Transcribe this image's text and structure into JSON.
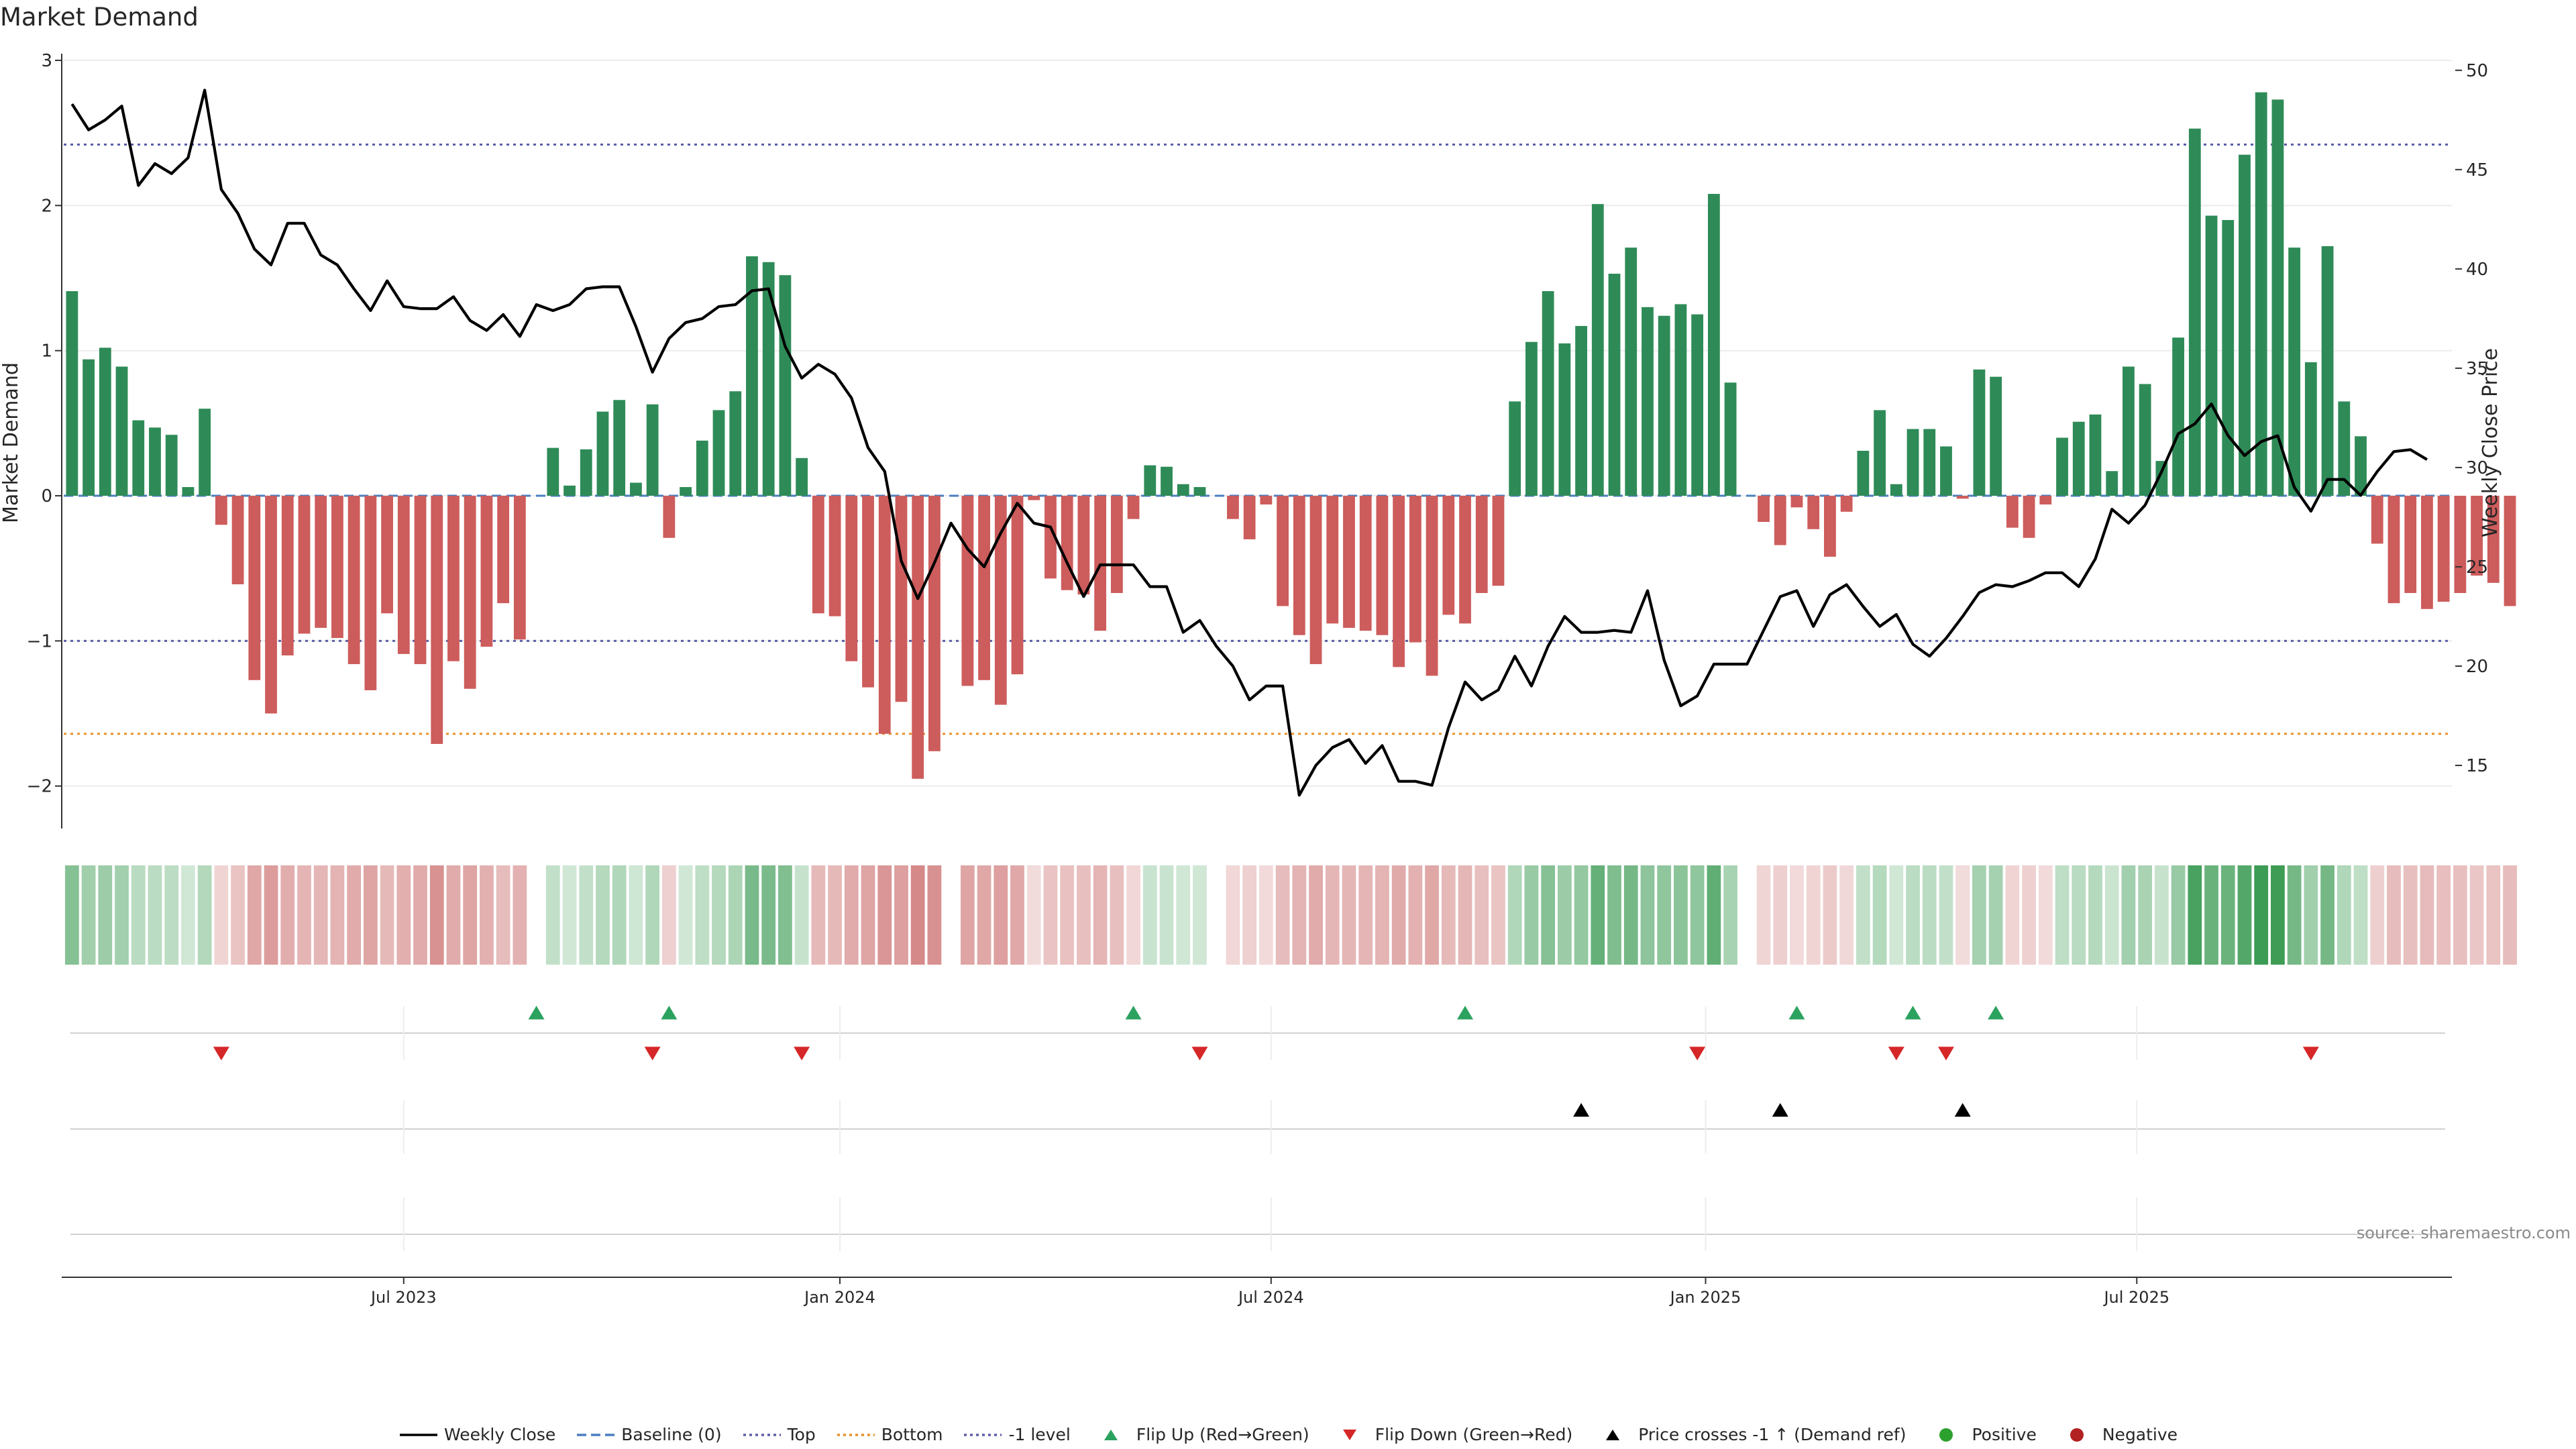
{
  "chart_data": {
    "type": "bar",
    "title": "Market Demand",
    "ylabel": "Market Demand",
    "y2label": "Weekly Close Price",
    "source": "source: sharemaestro.com",
    "ylim": [
      -2.2,
      3.0
    ],
    "y2lim": [
      12.5,
      50.5
    ],
    "yticks": [
      3,
      2,
      1,
      0,
      -1,
      -2
    ],
    "ytick_labels": [
      "3",
      "2",
      "1",
      "0",
      "−1",
      "−2"
    ],
    "y2ticks": [
      50,
      45,
      40,
      35,
      30,
      25,
      20,
      15
    ],
    "date_ticks": [
      "Jul 2023",
      "Jan 2024",
      "Jul 2024",
      "Jan 2025",
      "Jul 2025"
    ],
    "date_tick_weeks": [
      20,
      46.3,
      72.3,
      98.5,
      124.5
    ],
    "reference_lines": {
      "top": 2.42,
      "bottom": -1.64,
      "minus1": -1.0
    },
    "weeks": 144,
    "demand": [
      1.41,
      0.94,
      1.02,
      0.89,
      0.52,
      0.47,
      0.42,
      0.06,
      0.6,
      -0.2,
      -0.61,
      -1.27,
      -1.5,
      -1.1,
      -0.95,
      -0.91,
      -0.98,
      -1.16,
      -1.34,
      -0.81,
      -1.09,
      -1.16,
      -1.71,
      -1.14,
      -1.33,
      -1.04,
      -0.74,
      -0.99,
      0,
      0.33,
      0.07,
      0.32,
      0.58,
      0.66,
      0.09,
      0.63,
      -0.29,
      0.06,
      0.38,
      0.59,
      0.72,
      1.65,
      1.61,
      1.52,
      0.26,
      -0.81,
      -0.83,
      -1.14,
      -1.32,
      -1.64,
      -1.42,
      -1.95,
      -1.76,
      0,
      -1.31,
      -1.27,
      -1.44,
      -1.23,
      -0.03,
      -0.57,
      -0.65,
      -0.68,
      -0.93,
      -0.67,
      -0.16,
      0.21,
      0.2,
      0.08,
      0.06,
      0,
      -0.16,
      -0.3,
      -0.06,
      -0.76,
      -0.96,
      -1.16,
      -0.88,
      -0.91,
      -0.93,
      -0.96,
      -1.18,
      -1.01,
      -1.24,
      -0.82,
      -0.88,
      -0.67,
      -0.62,
      0.65,
      1.06,
      1.41,
      1.05,
      1.17,
      2.01,
      1.53,
      1.71,
      1.3,
      1.24,
      1.32,
      1.25,
      2.08,
      0.78,
      0,
      -0.18,
      -0.34,
      -0.08,
      -0.23,
      -0.42,
      -0.11,
      0.31,
      0.59,
      0.08,
      0.46,
      0.46,
      0.34,
      -0.02,
      0.87,
      0.82,
      -0.22,
      -0.29,
      -0.06,
      0.4,
      0.51,
      0.56,
      0.17,
      0.89,
      0.77,
      0.24,
      1.09,
      2.53,
      1.93,
      1.9,
      2.35,
      2.78,
      2.73,
      1.71,
      0.92,
      1.72,
      0.65,
      0.41,
      -0.33,
      -0.74,
      -0.67,
      -0.78,
      -0.73,
      -0.67,
      -0.55,
      -0.6,
      -0.76
    ],
    "weekly_close": [
      [
        0,
        48.3
      ],
      [
        1,
        47
      ],
      [
        2,
        47.5
      ],
      [
        3,
        48.2
      ],
      [
        4,
        44.2
      ],
      [
        5,
        45.3
      ],
      [
        6,
        44.8
      ],
      [
        7,
        45.6
      ],
      [
        8,
        49
      ],
      [
        9,
        44
      ],
      [
        10,
        42.8
      ],
      [
        11,
        41
      ],
      [
        12,
        40.2
      ],
      [
        13,
        42.3
      ],
      [
        14,
        42.3
      ],
      [
        15,
        40.7
      ],
      [
        16,
        40.2
      ],
      [
        17,
        39
      ],
      [
        18,
        37.9
      ],
      [
        19,
        39.4
      ],
      [
        20,
        38.1
      ],
      [
        21,
        38
      ],
      [
        22,
        38
      ],
      [
        23,
        38.6
      ],
      [
        24,
        37.4
      ],
      [
        25,
        36.9
      ],
      [
        26,
        37.7
      ],
      [
        27,
        36.6
      ],
      [
        28,
        38.2
      ],
      [
        29,
        37.9
      ],
      [
        30,
        38.2
      ],
      [
        31,
        39
      ],
      [
        32,
        39.1
      ],
      [
        33,
        39.1
      ],
      [
        34,
        37.1
      ],
      [
        35,
        34.8
      ],
      [
        36,
        36.5
      ],
      [
        37,
        37.3
      ],
      [
        38,
        37.5
      ],
      [
        39,
        38.1
      ],
      [
        40,
        38.2
      ],
      [
        41,
        38.9
      ],
      [
        42,
        39
      ],
      [
        43,
        36.1
      ],
      [
        44,
        34.5
      ],
      [
        45,
        35.2
      ],
      [
        46,
        34.7
      ],
      [
        47,
        33.5
      ],
      [
        48,
        31
      ],
      [
        49,
        29.8
      ],
      [
        50,
        25.3
      ],
      [
        51,
        23.4
      ],
      [
        52,
        25.2
      ],
      [
        53,
        27.2
      ],
      [
        54,
        25.9
      ],
      [
        55,
        25
      ],
      [
        56,
        26.7
      ],
      [
        57,
        28.2
      ],
      [
        58,
        27.2
      ],
      [
        59,
        27
      ],
      [
        60,
        25.2
      ],
      [
        61,
        23.5
      ],
      [
        62,
        25.1
      ],
      [
        63,
        25.1
      ],
      [
        64,
        25.1
      ],
      [
        65,
        24
      ],
      [
        66,
        24
      ],
      [
        67,
        21.7
      ],
      [
        68,
        22.3
      ],
      [
        69,
        21
      ],
      [
        70,
        20
      ],
      [
        71,
        18.3
      ],
      [
        72,
        19
      ],
      [
        73,
        19
      ],
      [
        74,
        13.5
      ],
      [
        75,
        15
      ],
      [
        76,
        15.9
      ],
      [
        77,
        16.3
      ],
      [
        78,
        15.1
      ],
      [
        79,
        16
      ],
      [
        80,
        14.2
      ],
      [
        81,
        14.2
      ],
      [
        82,
        14
      ],
      [
        83,
        16.9
      ],
      [
        84,
        19.2
      ],
      [
        85,
        18.3
      ],
      [
        86,
        18.8
      ],
      [
        87,
        20.5
      ],
      [
        88,
        19
      ],
      [
        89,
        21
      ],
      [
        90,
        22.5
      ],
      [
        91,
        21.7
      ],
      [
        92,
        21.7
      ],
      [
        93,
        21.8
      ],
      [
        94,
        21.7
      ],
      [
        95,
        23.8
      ],
      [
        96,
        20.3
      ],
      [
        97,
        18
      ],
      [
        98,
        18.5
      ],
      [
        99,
        20.1
      ],
      [
        100,
        20.1
      ],
      [
        101,
        20.1
      ],
      [
        102,
        21.8
      ],
      [
        103,
        23.5
      ],
      [
        104,
        23.8
      ],
      [
        105,
        22
      ],
      [
        106,
        23.6
      ],
      [
        107,
        24.1
      ],
      [
        108,
        23
      ],
      [
        109,
        22
      ],
      [
        110,
        22.6
      ],
      [
        111,
        21.1
      ],
      [
        112,
        20.5
      ],
      [
        113,
        21.4
      ],
      [
        114,
        22.5
      ],
      [
        115,
        23.7
      ],
      [
        116,
        24.1
      ],
      [
        117,
        24
      ],
      [
        118,
        24.3
      ],
      [
        119,
        24.7
      ],
      [
        120,
        24.7
      ],
      [
        121,
        24
      ],
      [
        122,
        25.4
      ],
      [
        123,
        27.9
      ],
      [
        124,
        27.2
      ],
      [
        125,
        28.1
      ],
      [
        126,
        29.8
      ],
      [
        127,
        31.7
      ],
      [
        128,
        32.2
      ],
      [
        129,
        33.2
      ],
      [
        130,
        31.6
      ],
      [
        131,
        30.6
      ],
      [
        132,
        31.3
      ],
      [
        133,
        31.6
      ],
      [
        134,
        29
      ],
      [
        135,
        27.8
      ],
      [
        136,
        29.4
      ],
      [
        137,
        29.4
      ],
      [
        138,
        28.6
      ],
      [
        139,
        29.8
      ],
      [
        140,
        30.8
      ],
      [
        141,
        30.9
      ],
      [
        142,
        30.4
      ]
    ],
    "flip_up_weeks": [
      28,
      36,
      64,
      84,
      104,
      111,
      116
    ],
    "flip_down_weeks": [
      9,
      35,
      44,
      68,
      98,
      110,
      113,
      135
    ],
    "price_cross_weeks": [
      91,
      103,
      114
    ],
    "legend": [
      {
        "label": "Weekly Close",
        "kind": "line",
        "color": "#000000"
      },
      {
        "label": "Baseline (0)",
        "kind": "dash",
        "color": "#4a7fc0"
      },
      {
        "label": "Top",
        "kind": "dot",
        "color": "#5b5ea6"
      },
      {
        "label": "Bottom",
        "kind": "dot",
        "color": "#e8902a"
      },
      {
        "label": "-1 level",
        "kind": "dot",
        "color": "#5b5ea6"
      },
      {
        "label": "Flip Up (Red→Green)",
        "kind": "tri-up",
        "color": "#2ca25f"
      },
      {
        "label": "Flip Down (Green→Red)",
        "kind": "tri-down",
        "color": "#d62728"
      },
      {
        "label": "Price crosses -1 ↑ (Demand ref)",
        "kind": "tri-up",
        "color": "#000000"
      },
      {
        "label": "Positive",
        "kind": "dot-marker",
        "color": "#2ca02c"
      },
      {
        "label": "Negative",
        "kind": "dot-marker",
        "color": "#b22222"
      }
    ],
    "colors": {
      "positive": "#2e8b57",
      "negative": "#cd5c5c",
      "price": "#000000",
      "flip_up": "#2ca25f",
      "flip_down": "#d62728",
      "heat_positive": "#3a9a52",
      "heat_negative": "#c86464"
    }
  }
}
